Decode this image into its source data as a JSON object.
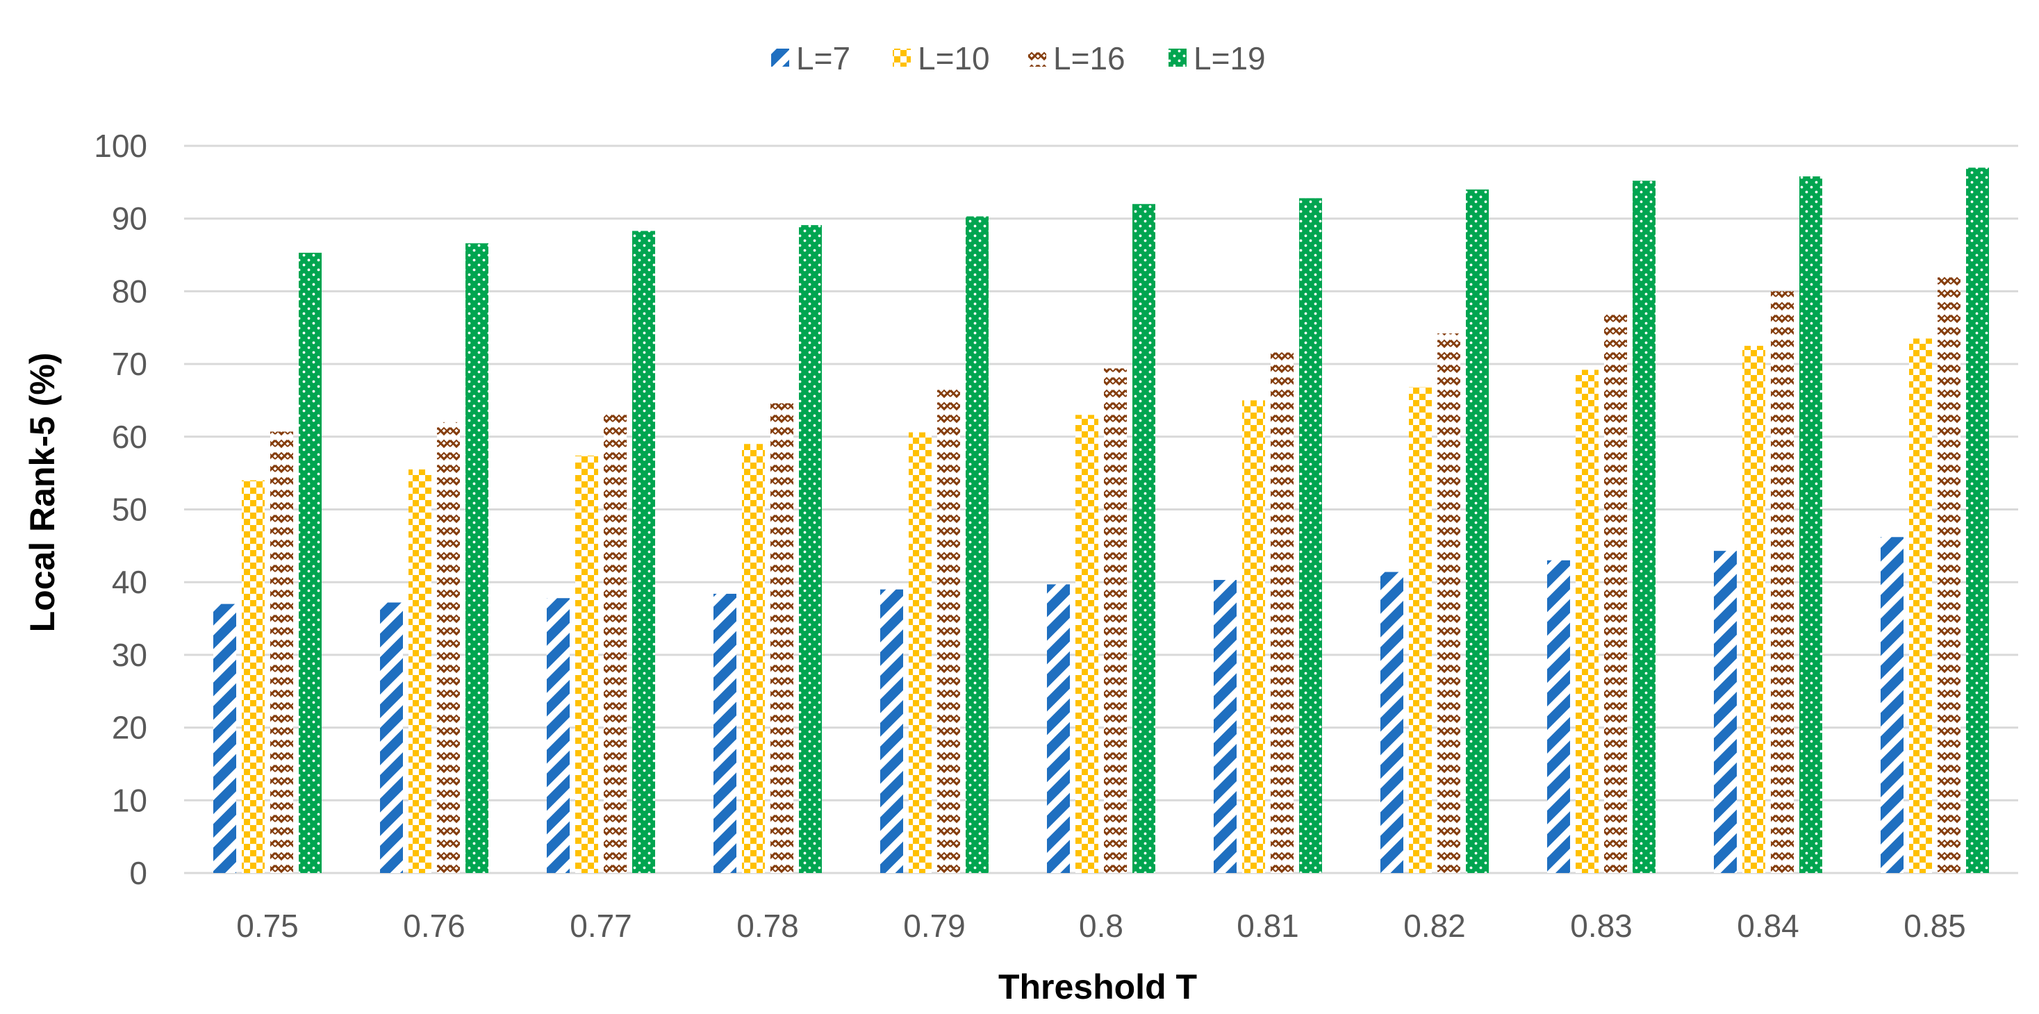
{
  "chart_data": {
    "type": "bar",
    "title": "",
    "xlabel": "Threshold T",
    "ylabel": "Local Rank-5 (%)",
    "ylim": [
      0,
      100
    ],
    "yticks": [
      0,
      10,
      20,
      30,
      40,
      50,
      60,
      70,
      80,
      90,
      100
    ],
    "grid": true,
    "legend_position": "top-center",
    "categories": [
      "0.75",
      "0.76",
      "0.77",
      "0.78",
      "0.79",
      "0.8",
      "0.81",
      "0.82",
      "0.83",
      "0.84",
      "0.85"
    ],
    "series": [
      {
        "name": "L=7",
        "color": "#1f6fc0",
        "pattern": "diagonal-stripes",
        "values": [
          37,
          37.2,
          37.8,
          38.4,
          39,
          39.7,
          40.3,
          41.4,
          43,
          44.3,
          46.2
        ]
      },
      {
        "name": "L=10",
        "color": "#ffc000",
        "pattern": "checker",
        "values": [
          54,
          55.5,
          57.4,
          59,
          60.6,
          63,
          65,
          66.8,
          69.2,
          72.5,
          73.5
        ]
      },
      {
        "name": "L=16",
        "color": "#843c0c",
        "pattern": "zigzag",
        "values": [
          60.7,
          62,
          63.5,
          64.6,
          67,
          69.4,
          71.6,
          74.2,
          77,
          80,
          82
        ]
      },
      {
        "name": "L=19",
        "color": "#00a550",
        "pattern": "dots",
        "values": [
          85.3,
          86.6,
          88.3,
          89.1,
          90.3,
          92,
          92.8,
          94,
          95.2,
          95.8,
          97
        ]
      }
    ]
  }
}
